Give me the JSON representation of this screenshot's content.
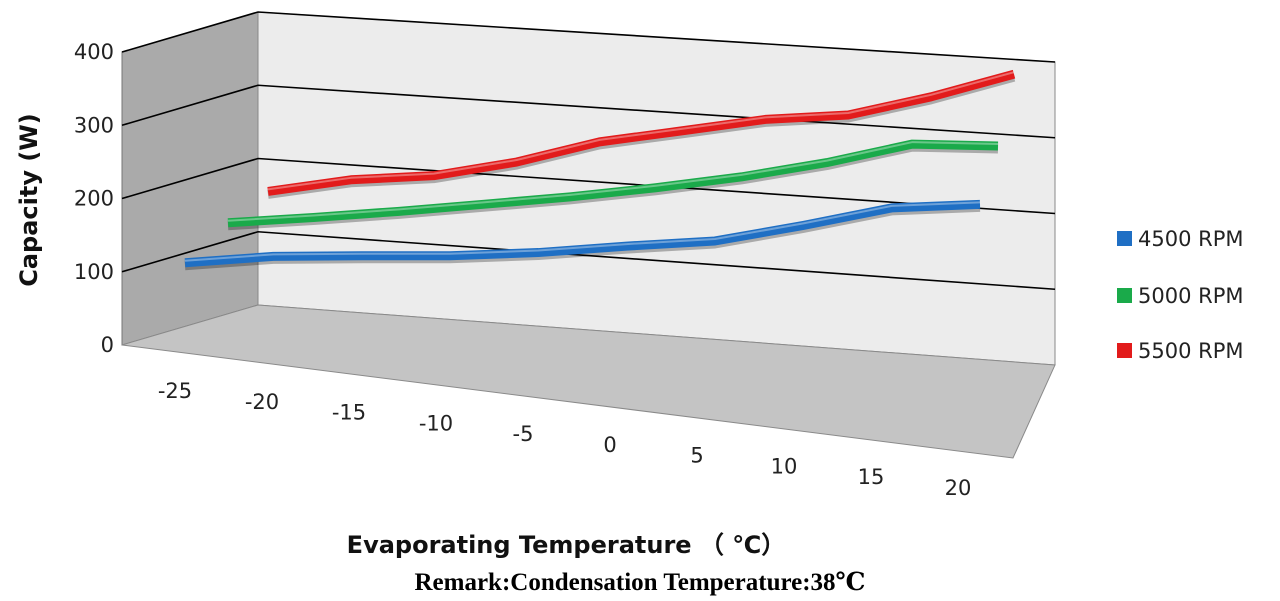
{
  "chart_data": {
    "type": "line",
    "style": "3d",
    "categories": [
      "-25",
      "-20",
      "-15",
      "-10",
      "-5",
      "0",
      "5",
      "10",
      "15",
      "20"
    ],
    "series": [
      {
        "name": "4500 RPM",
        "color": "#1f6fc4",
        "values": [
          80,
          98,
          108,
          117,
          130,
          147,
          162,
          190,
          220,
          232
        ]
      },
      {
        "name": "5000 RPM",
        "color": "#1aaa4a",
        "values": [
          127,
          143,
          160,
          178,
          196,
          216,
          238,
          264,
          295,
          300
        ]
      },
      {
        "name": "5500 RPM",
        "color": "#e21b1b",
        "values": [
          160,
          184,
          198,
          224,
          258,
          280,
          302,
          315,
          345,
          380
        ]
      }
    ],
    "yticks": [
      "0",
      "100",
      "200",
      "300",
      "400"
    ],
    "ylim": [
      0,
      400
    ],
    "xlabel": "Evaporating Temperature （ ℃）",
    "ylabel": "Capacity  (W)",
    "legend_position": "right",
    "grid": true
  },
  "remark": "Remark:Condensation Temperature:38℃"
}
